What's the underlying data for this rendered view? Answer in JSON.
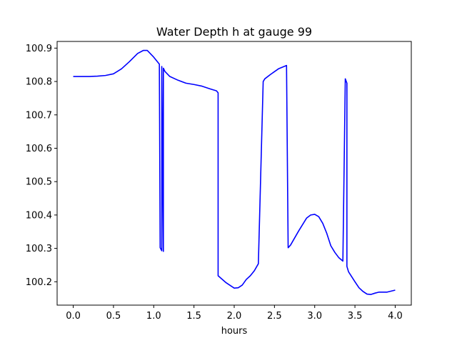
{
  "chart_data": {
    "type": "line",
    "title": "Water Depth h at gauge 99",
    "xlabel": "hours",
    "ylabel": "",
    "xlim": [
      -0.2,
      4.2
    ],
    "ylim": [
      100.13,
      100.92
    ],
    "x_ticks": [
      0.0,
      0.5,
      1.0,
      1.5,
      2.0,
      2.5,
      3.0,
      3.5,
      4.0
    ],
    "x_tick_labels": [
      "0.0",
      "0.5",
      "1.0",
      "1.5",
      "2.0",
      "2.5",
      "3.0",
      "3.5",
      "4.0"
    ],
    "y_ticks": [
      100.2,
      100.3,
      100.4,
      100.5,
      100.6,
      100.7,
      100.8,
      100.9
    ],
    "y_tick_labels": [
      "100.2",
      "100.3",
      "100.4",
      "100.5",
      "100.6",
      "100.7",
      "100.8",
      "100.9"
    ],
    "grid": false,
    "series": [
      {
        "color": "#0000ff",
        "x": [
          0.0,
          0.1,
          0.2,
          0.3,
          0.4,
          0.5,
          0.6,
          0.7,
          0.8,
          0.87,
          0.92,
          1.0,
          1.07,
          1.08,
          1.1,
          1.1,
          1.12,
          1.12,
          1.14,
          1.2,
          1.3,
          1.4,
          1.5,
          1.6,
          1.7,
          1.78,
          1.8,
          1.8,
          1.9,
          2.0,
          2.05,
          2.1,
          2.15,
          2.2,
          2.25,
          2.3,
          2.36,
          2.38,
          2.38,
          2.45,
          2.55,
          2.65,
          2.67,
          2.67,
          2.7,
          2.8,
          2.9,
          2.95,
          3.0,
          3.05,
          3.1,
          3.15,
          3.2,
          3.25,
          3.3,
          3.35,
          3.38,
          3.38,
          3.4,
          3.4,
          3.42,
          3.5,
          3.55,
          3.6,
          3.65,
          3.7,
          3.75,
          3.8,
          3.85,
          3.9,
          3.95,
          4.0
        ],
        "y": [
          100.815,
          100.815,
          100.815,
          100.816,
          100.818,
          100.823,
          100.838,
          100.86,
          100.884,
          100.893,
          100.893,
          100.873,
          100.852,
          100.302,
          100.293,
          100.845,
          100.291,
          100.84,
          100.83,
          100.815,
          100.804,
          100.795,
          100.791,
          100.786,
          100.778,
          100.772,
          100.766,
          100.218,
          100.197,
          100.181,
          100.182,
          100.19,
          100.207,
          100.218,
          100.233,
          100.254,
          100.8,
          100.808,
          100.808,
          100.821,
          100.838,
          100.848,
          100.302,
          100.302,
          100.31,
          100.352,
          100.391,
          100.4,
          100.402,
          100.395,
          100.375,
          100.345,
          100.308,
          100.288,
          100.272,
          100.262,
          100.808,
          100.808,
          100.795,
          100.246,
          100.23,
          100.2,
          100.182,
          100.171,
          100.163,
          100.162,
          100.166,
          100.169,
          100.169,
          100.169,
          100.172,
          100.175
        ]
      }
    ]
  }
}
